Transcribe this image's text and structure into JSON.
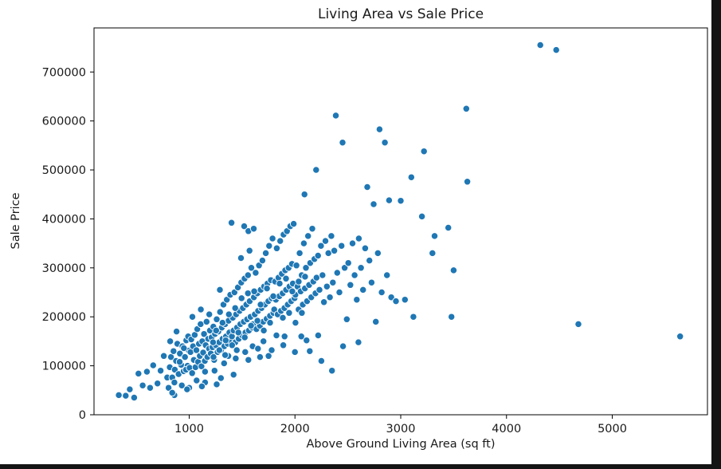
{
  "figure": {
    "background": "#ffffff",
    "page_background": "#141414"
  },
  "chart_data": {
    "type": "scatter",
    "title": "Living Area vs Sale Price",
    "xlabel": "Above Ground Living Area (sq ft)",
    "ylabel": "Sale Price",
    "xlim": [
      100,
      5900
    ],
    "ylim": [
      0,
      790000
    ],
    "x_ticks": [
      1000,
      2000,
      3000,
      4000,
      5000
    ],
    "y_ticks": [
      0,
      100000,
      200000,
      300000,
      400000,
      500000,
      600000,
      700000
    ],
    "grid": false,
    "legend": null,
    "marker_color": "#1f77b4",
    "marker_edge_color": "#ffffff",
    "spine_color": "#000000",
    "points": [
      [
        334,
        40000
      ],
      [
        400,
        39000
      ],
      [
        438,
        52000
      ],
      [
        480,
        35000
      ],
      [
        520,
        84000
      ],
      [
        560,
        60000
      ],
      [
        600,
        88000
      ],
      [
        630,
        55000
      ],
      [
        660,
        101000
      ],
      [
        700,
        64000
      ],
      [
        730,
        90000
      ],
      [
        760,
        120000
      ],
      [
        792,
        76000
      ],
      [
        805,
        55000
      ],
      [
        816,
        97000
      ],
      [
        828,
        118000
      ],
      [
        840,
        76000
      ],
      [
        852,
        130000
      ],
      [
        864,
        92000
      ],
      [
        876,
        110000
      ],
      [
        888,
        145000
      ],
      [
        900,
        83000
      ],
      [
        912,
        125000
      ],
      [
        924,
        102000
      ],
      [
        936,
        140000
      ],
      [
        948,
        89000
      ],
      [
        960,
        118000
      ],
      [
        972,
        152000
      ],
      [
        984,
        100000
      ],
      [
        996,
        131000
      ],
      [
        820,
        150000
      ],
      [
        860,
        66000
      ],
      [
        880,
        170000
      ],
      [
        910,
        108000
      ],
      [
        930,
        60000
      ],
      [
        950,
        136000
      ],
      [
        970,
        92000
      ],
      [
        990,
        160000
      ],
      [
        1004,
        96000
      ],
      [
        1012,
        128000
      ],
      [
        1020,
        154000
      ],
      [
        1028,
        85000
      ],
      [
        1036,
        140000
      ],
      [
        1044,
        112000
      ],
      [
        1052,
        163000
      ],
      [
        1060,
        97000
      ],
      [
        1068,
        132000
      ],
      [
        1076,
        175000
      ],
      [
        1084,
        108000
      ],
      [
        1092,
        145000
      ],
      [
        1100,
        120000
      ],
      [
        1108,
        185000
      ],
      [
        1116,
        99000
      ],
      [
        1124,
        150000
      ],
      [
        1132,
        127000
      ],
      [
        1140,
        165000
      ],
      [
        1148,
        110000
      ],
      [
        1156,
        142000
      ],
      [
        1164,
        190000
      ],
      [
        1172,
        118000
      ],
      [
        1180,
        155000
      ],
      [
        1188,
        135000
      ],
      [
        1196,
        172000
      ],
      [
        1030,
        200000
      ],
      [
        1070,
        70000
      ],
      [
        1110,
        215000
      ],
      [
        1150,
        88000
      ],
      [
        1190,
        205000
      ],
      [
        1204,
        125000
      ],
      [
        1212,
        158000
      ],
      [
        1220,
        138000
      ],
      [
        1228,
        180000
      ],
      [
        1236,
        112000
      ],
      [
        1244,
        165000
      ],
      [
        1252,
        142000
      ],
      [
        1260,
        195000
      ],
      [
        1268,
        128000
      ],
      [
        1276,
        170000
      ],
      [
        1284,
        148000
      ],
      [
        1292,
        210000
      ],
      [
        1300,
        132000
      ],
      [
        1308,
        178000
      ],
      [
        1316,
        155000
      ],
      [
        1324,
        225000
      ],
      [
        1332,
        140000
      ],
      [
        1340,
        185000
      ],
      [
        1348,
        160000
      ],
      [
        1356,
        235000
      ],
      [
        1364,
        145000
      ],
      [
        1372,
        192000
      ],
      [
        1380,
        168000
      ],
      [
        1388,
        245000
      ],
      [
        1396,
        150000
      ],
      [
        1240,
        90000
      ],
      [
        1290,
        255000
      ],
      [
        1330,
        105000
      ],
      [
        1370,
        120000
      ],
      [
        1400,
        392000
      ],
      [
        1404,
        160000
      ],
      [
        1412,
        198000
      ],
      [
        1420,
        172000
      ],
      [
        1428,
        250000
      ],
      [
        1436,
        148000
      ],
      [
        1444,
        205000
      ],
      [
        1452,
        178000
      ],
      [
        1460,
        260000
      ],
      [
        1468,
        155000
      ],
      [
        1476,
        212000
      ],
      [
        1484,
        185000
      ],
      [
        1492,
        270000
      ],
      [
        1500,
        162000
      ],
      [
        1508,
        218000
      ],
      [
        1516,
        190000
      ],
      [
        1524,
        278000
      ],
      [
        1532,
        168000
      ],
      [
        1540,
        225000
      ],
      [
        1548,
        195000
      ],
      [
        1556,
        285000
      ],
      [
        1564,
        172000
      ],
      [
        1572,
        232000
      ],
      [
        1580,
        200000
      ],
      [
        1588,
        300000
      ],
      [
        1596,
        178000
      ],
      [
        1440,
        115000
      ],
      [
        1490,
        320000
      ],
      [
        1530,
        128000
      ],
      [
        1570,
        335000
      ],
      [
        1600,
        140000
      ],
      [
        1520,
        385000
      ],
      [
        1560,
        375000
      ],
      [
        1610,
        380000
      ],
      [
        1604,
        185000
      ],
      [
        1612,
        240000
      ],
      [
        1620,
        205000
      ],
      [
        1628,
        290000
      ],
      [
        1636,
        175000
      ],
      [
        1644,
        248000
      ],
      [
        1652,
        212000
      ],
      [
        1660,
        305000
      ],
      [
        1668,
        182000
      ],
      [
        1676,
        255000
      ],
      [
        1684,
        218000
      ],
      [
        1692,
        315000
      ],
      [
        1700,
        190000
      ],
      [
        1708,
        262000
      ],
      [
        1716,
        225000
      ],
      [
        1724,
        330000
      ],
      [
        1732,
        196000
      ],
      [
        1740,
        268000
      ],
      [
        1748,
        232000
      ],
      [
        1756,
        345000
      ],
      [
        1764,
        202000
      ],
      [
        1772,
        275000
      ],
      [
        1780,
        238000
      ],
      [
        1788,
        360000
      ],
      [
        1796,
        208000
      ],
      [
        1650,
        135000
      ],
      [
        1702,
        150000
      ],
      [
        1750,
        120000
      ],
      [
        1804,
        215000
      ],
      [
        1812,
        272000
      ],
      [
        1820,
        235000
      ],
      [
        1828,
        340000
      ],
      [
        1836,
        205000
      ],
      [
        1844,
        280000
      ],
      [
        1852,
        242000
      ],
      [
        1860,
        355000
      ],
      [
        1868,
        212000
      ],
      [
        1876,
        288000
      ],
      [
        1884,
        248000
      ],
      [
        1892,
        368000
      ],
      [
        1900,
        218000
      ],
      [
        1908,
        295000
      ],
      [
        1916,
        255000
      ],
      [
        1924,
        375000
      ],
      [
        1932,
        225000
      ],
      [
        1940,
        300000
      ],
      [
        1948,
        262000
      ],
      [
        1956,
        385000
      ],
      [
        1964,
        232000
      ],
      [
        1972,
        308000
      ],
      [
        1980,
        268000
      ],
      [
        1988,
        390000
      ],
      [
        1996,
        238000
      ],
      [
        1902,
        160000
      ],
      [
        2004,
        245000
      ],
      [
        2014,
        305000
      ],
      [
        2024,
        262000
      ],
      [
        2034,
        215000
      ],
      [
        2044,
        330000
      ],
      [
        2054,
        252000
      ],
      [
        2064,
        285000
      ],
      [
        2074,
        225000
      ],
      [
        2084,
        350000
      ],
      [
        2094,
        258000
      ],
      [
        2104,
        300000
      ],
      [
        2114,
        232000
      ],
      [
        2124,
        365000
      ],
      [
        2134,
        265000
      ],
      [
        2144,
        310000
      ],
      [
        2154,
        240000
      ],
      [
        2164,
        380000
      ],
      [
        2174,
        272000
      ],
      [
        2184,
        318000
      ],
      [
        2194,
        248000
      ],
      [
        2060,
        160000
      ],
      [
        2140,
        130000
      ],
      [
        2090,
        450000
      ],
      [
        2200,
        500000
      ],
      [
        2204,
        280000
      ],
      [
        2218,
        325000
      ],
      [
        2232,
        255000
      ],
      [
        2246,
        345000
      ],
      [
        2260,
        285000
      ],
      [
        2274,
        230000
      ],
      [
        2288,
        355000
      ],
      [
        2302,
        262000
      ],
      [
        2316,
        330000
      ],
      [
        2330,
        240000
      ],
      [
        2344,
        365000
      ],
      [
        2358,
        270000
      ],
      [
        2372,
        335000
      ],
      [
        2386,
        611000
      ],
      [
        2400,
        290000
      ],
      [
        2420,
        250000
      ],
      [
        2440,
        345000
      ],
      [
        2450,
        556000
      ],
      [
        2470,
        300000
      ],
      [
        2490,
        195000
      ],
      [
        2250,
        110000
      ],
      [
        2350,
        90000
      ],
      [
        2455,
        140000
      ],
      [
        2504,
        310000
      ],
      [
        2524,
        265000
      ],
      [
        2544,
        350000
      ],
      [
        2564,
        285000
      ],
      [
        2584,
        235000
      ],
      [
        2604,
        360000
      ],
      [
        2624,
        300000
      ],
      [
        2644,
        255000
      ],
      [
        2664,
        340000
      ],
      [
        2684,
        465000
      ],
      [
        2704,
        315000
      ],
      [
        2724,
        270000
      ],
      [
        2744,
        430000
      ],
      [
        2764,
        190000
      ],
      [
        2784,
        330000
      ],
      [
        2800,
        583000
      ],
      [
        2820,
        250000
      ],
      [
        2850,
        556000
      ],
      [
        2870,
        285000
      ],
      [
        2890,
        438000
      ],
      [
        2910,
        240000
      ],
      [
        2955,
        232000
      ],
      [
        2600,
        148000
      ],
      [
        3000,
        437000
      ],
      [
        3040,
        235000
      ],
      [
        3100,
        485000
      ],
      [
        3120,
        200000
      ],
      [
        3200,
        405000
      ],
      [
        3220,
        538000
      ],
      [
        3300,
        330000
      ],
      [
        3320,
        365000
      ],
      [
        3450,
        382000
      ],
      [
        3480,
        200000
      ],
      [
        3500,
        295000
      ],
      [
        3620,
        625000
      ],
      [
        3630,
        476000
      ],
      [
        4320,
        755000
      ],
      [
        4470,
        745000
      ],
      [
        4680,
        185000
      ],
      [
        5642,
        160000
      ],
      [
        1225,
        148000
      ],
      [
        1255,
        172000
      ],
      [
        1285,
        132000
      ],
      [
        1315,
        188000
      ],
      [
        1345,
        152000
      ],
      [
        1375,
        205000
      ],
      [
        1405,
        142000
      ],
      [
        1435,
        218000
      ],
      [
        1465,
        168000
      ],
      [
        1495,
        238000
      ],
      [
        1525,
        158000
      ],
      [
        1555,
        248000
      ],
      [
        1585,
        182000
      ],
      [
        1615,
        252000
      ],
      [
        1645,
        192000
      ],
      [
        1675,
        225000
      ],
      [
        1705,
        172000
      ],
      [
        1735,
        258000
      ],
      [
        1765,
        188000
      ],
      [
        1795,
        242000
      ],
      [
        1825,
        162000
      ],
      [
        1855,
        268000
      ],
      [
        1885,
        198000
      ],
      [
        1915,
        278000
      ],
      [
        1945,
        208000
      ],
      [
        1975,
        252000
      ],
      [
        2005,
        188000
      ],
      [
        2035,
        272000
      ],
      [
        2065,
        208000
      ],
      [
        2095,
        282000
      ],
      [
        1230,
        118000
      ],
      [
        1340,
        122000
      ],
      [
        1450,
        132000
      ],
      [
        1560,
        112000
      ],
      [
        1670,
        118000
      ],
      [
        1780,
        132000
      ],
      [
        1890,
        142000
      ],
      [
        2000,
        128000
      ],
      [
        2110,
        152000
      ],
      [
        2220,
        162000
      ],
      [
        860,
        40000
      ],
      [
        1000,
        55000
      ],
      [
        1150,
        66000
      ],
      [
        1300,
        75000
      ],
      [
        1420,
        82000
      ],
      [
        840,
        45000
      ],
      [
        980,
        52000
      ],
      [
        1120,
        58000
      ],
      [
        1260,
        62000
      ]
    ]
  }
}
